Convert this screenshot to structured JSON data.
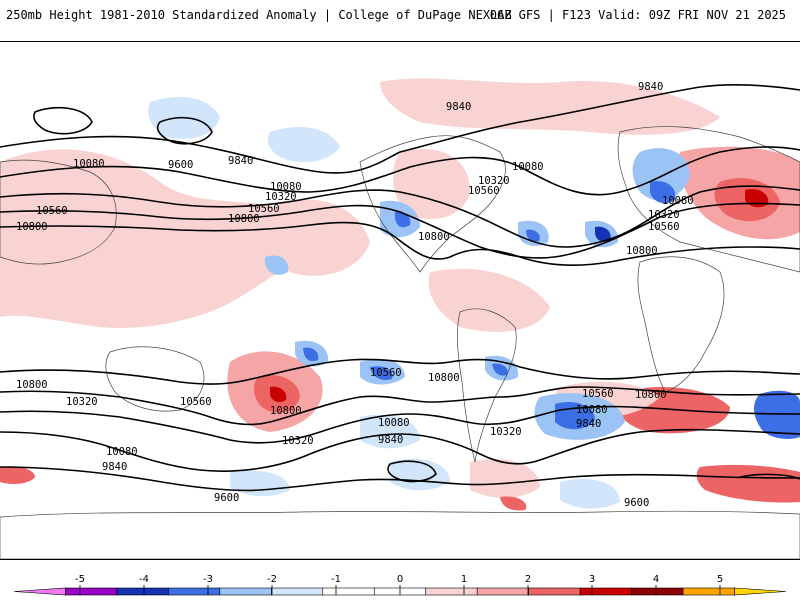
{
  "header": {
    "title": "250mb Height 1981-2010 Standardized Anomaly | College of DuPage NEXLAB",
    "run_info": "06Z GFS | F123 Valid: 09Z FRI NOV 21 2025"
  },
  "map": {
    "contour_labels": {
      "c9840_top_right": "9840",
      "c9840_greenland": "9840",
      "c10080_nam": "10080",
      "c10320_nam": "10320",
      "c10560_nam": "10560",
      "c10080_eur": "10080",
      "c10320_eur": "10320",
      "c10560_eur": "10560",
      "c10800_atl": "10800",
      "c10800_gulf": "10800",
      "c10080_npac": "10080",
      "c9600_npac": "9600",
      "c9840_npac": "9840",
      "c10080_pac": "10080",
      "c10320_pac": "10320",
      "c10560_pac": "10560",
      "c10800_pac": "10800",
      "c10560_wasia": "10560",
      "c10800_wasia": "10800",
      "c10800_sh_west": "10800",
      "c10320_sh_west": "10320",
      "c10560_aus": "10560",
      "c10800_nz": "10800",
      "c10320_nz": "10320",
      "c10080_sw": "10080",
      "c9840_sw": "9840",
      "c10560_spac": "10560",
      "c10800_spac": "10800",
      "c10080_spac": "10080",
      "c9840_spac": "9840",
      "c10320_sam": "10320",
      "c10560_satl": "10560",
      "c10080_satl": "10080",
      "c9840_satl": "9840",
      "c10800_satl": "10800",
      "c9600_sw": "9600",
      "c9600_se": "9600"
    }
  },
  "colorbar": {
    "ticks": [
      "-5",
      "-4",
      "-3",
      "-2",
      "-1",
      "0",
      "1",
      "2",
      "3",
      "4",
      "5"
    ],
    "colors": [
      "#f07af0",
      "#9a00c8",
      "#1432b4",
      "#3c6ee6",
      "#9cc3f5",
      "#d2e6fb",
      "#ffffff",
      "#ffffff",
      "#f9d2d2",
      "#f5a5a5",
      "#ec6464",
      "#c80000",
      "#8c0000",
      "#ffa500",
      "#ffd700"
    ]
  }
}
